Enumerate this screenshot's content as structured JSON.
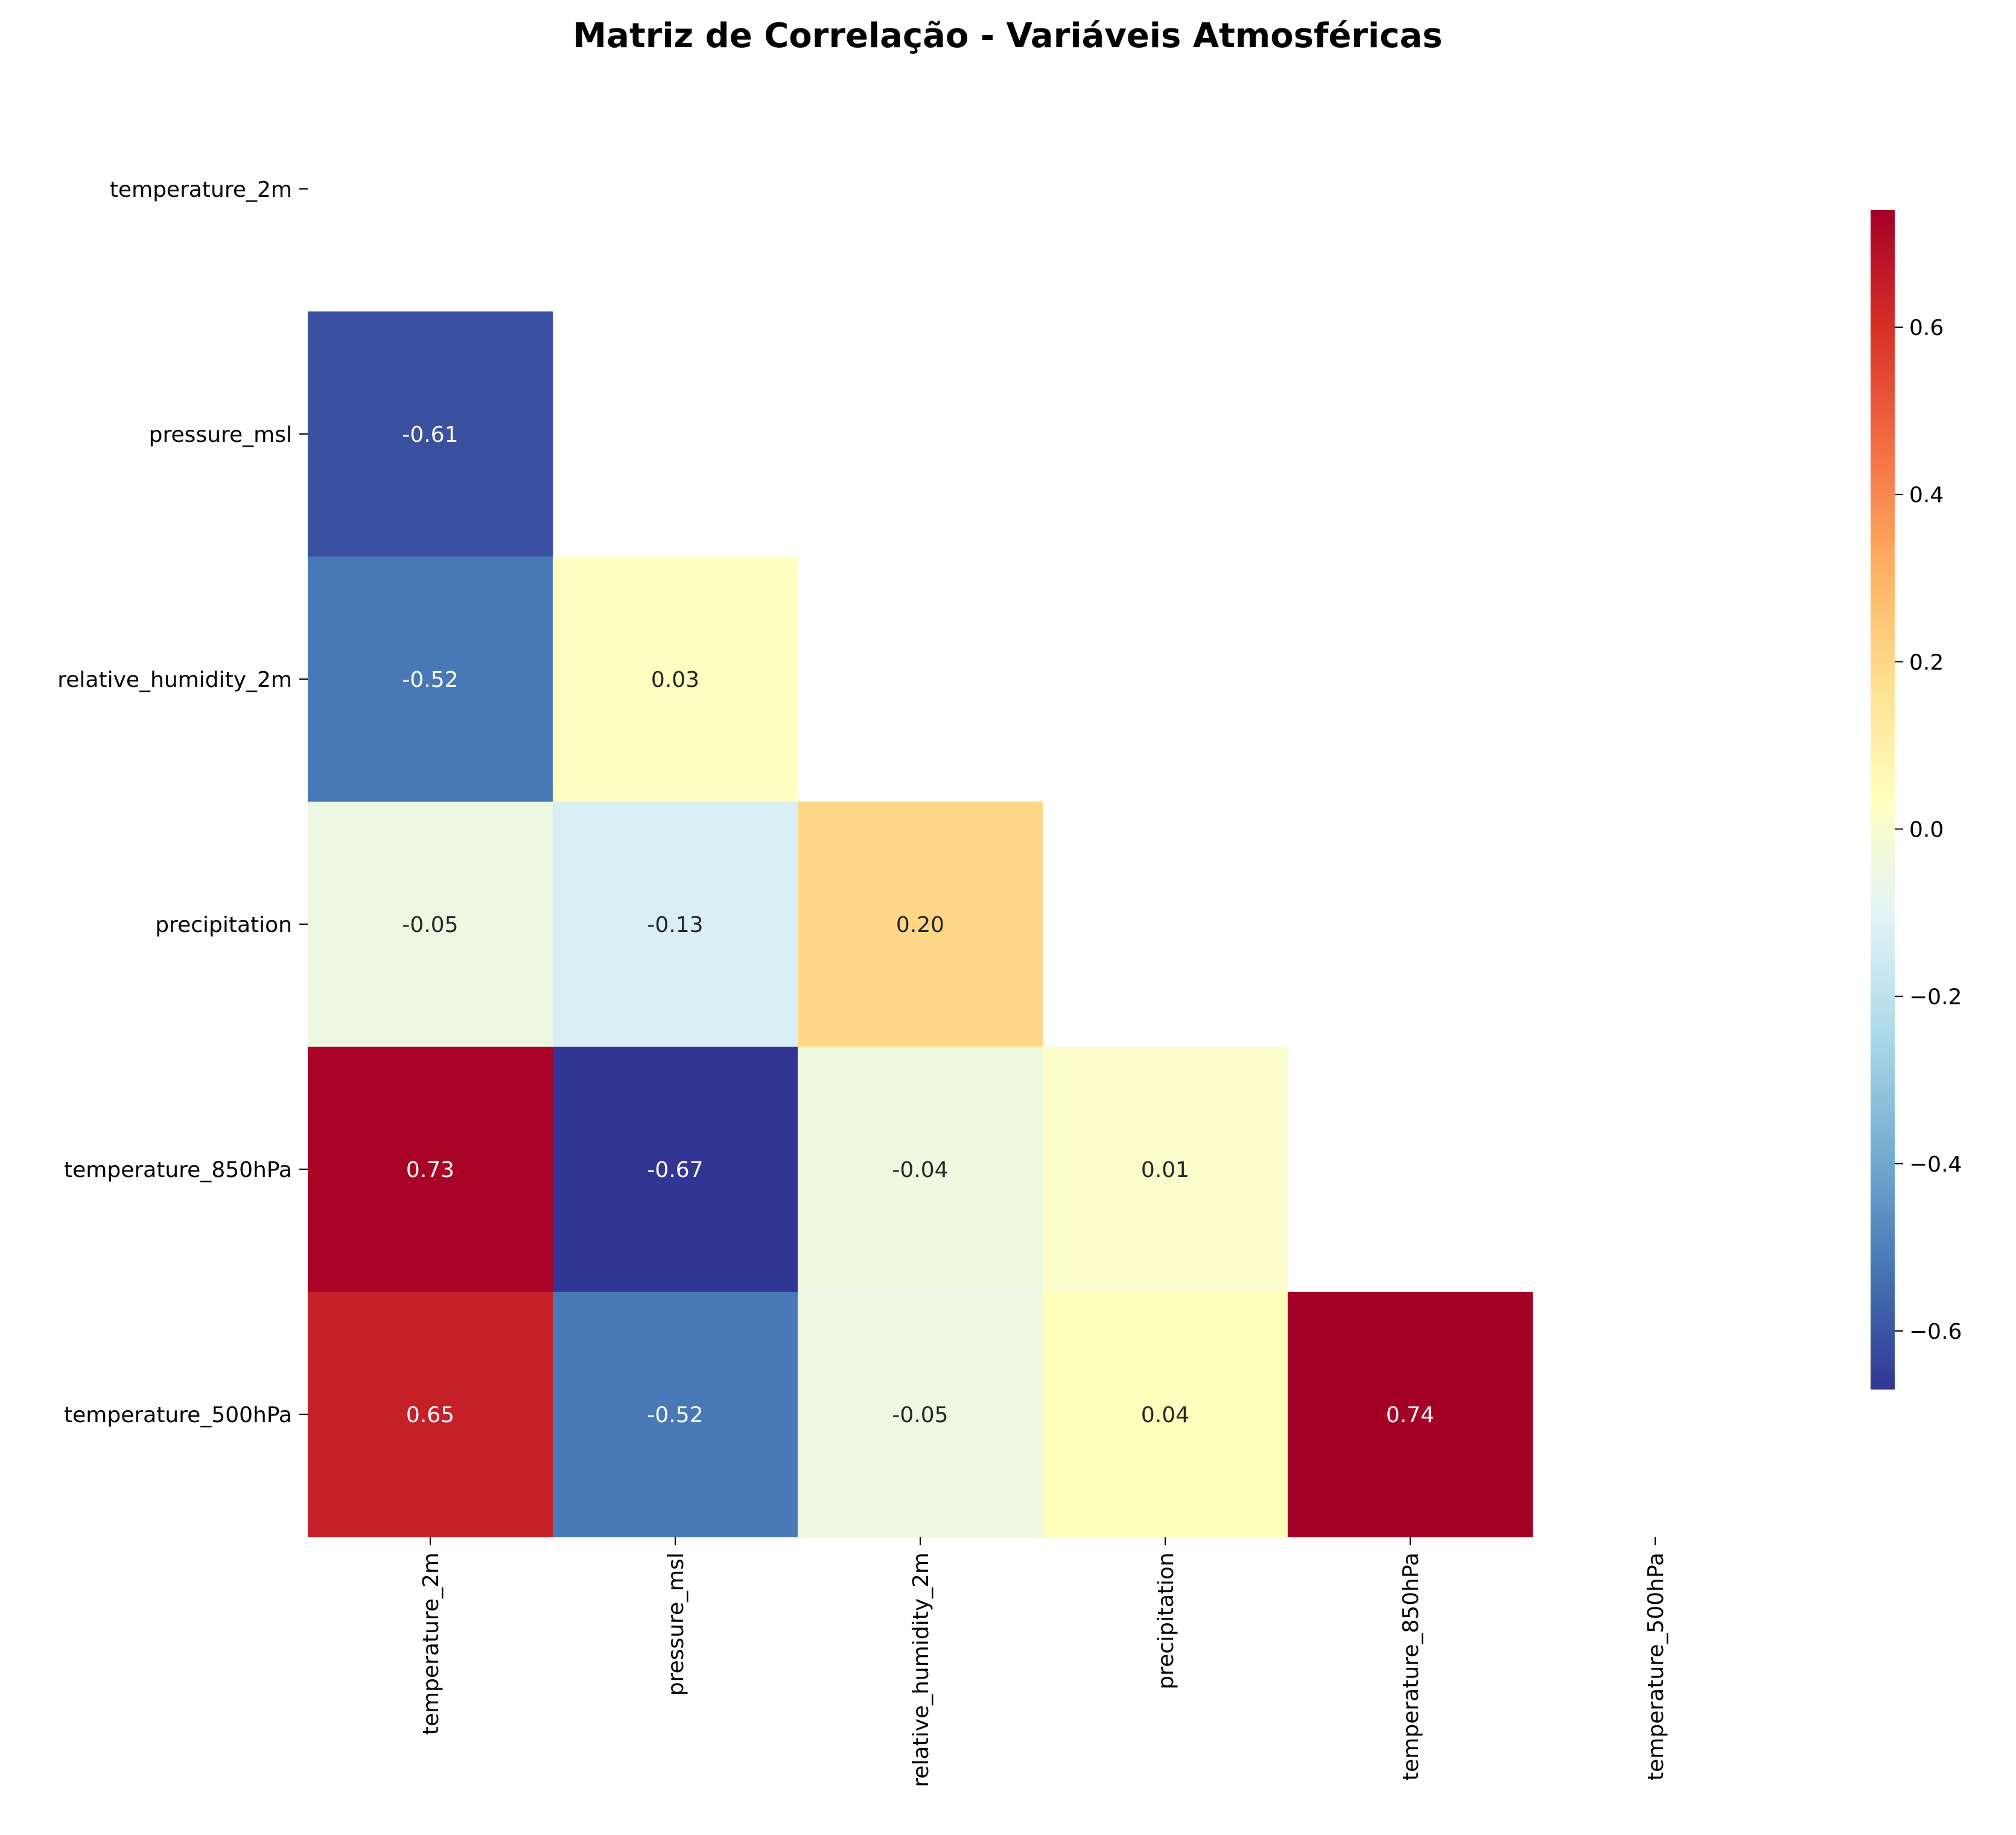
{
  "chart_data": {
    "type": "heatmap",
    "title": "Matriz de Correlação - Variáveis Atmosféricas",
    "xlabel": "",
    "ylabel": "",
    "variables": [
      "temperature_2m",
      "pressure_msl",
      "relative_humidity_2m",
      "precipitation",
      "temperature_850hPa",
      "temperature_500hPa"
    ],
    "mask": "upper-triangle-including-diagonal",
    "cells": [
      {
        "row": "pressure_msl",
        "col": "temperature_2m",
        "value": -0.61,
        "label": "-0.61"
      },
      {
        "row": "relative_humidity_2m",
        "col": "temperature_2m",
        "value": -0.52,
        "label": "-0.52"
      },
      {
        "row": "relative_humidity_2m",
        "col": "pressure_msl",
        "value": 0.03,
        "label": "0.03"
      },
      {
        "row": "precipitation",
        "col": "temperature_2m",
        "value": -0.05,
        "label": "-0.05"
      },
      {
        "row": "precipitation",
        "col": "pressure_msl",
        "value": -0.13,
        "label": "-0.13"
      },
      {
        "row": "precipitation",
        "col": "relative_humidity_2m",
        "value": 0.2,
        "label": "0.20"
      },
      {
        "row": "temperature_850hPa",
        "col": "temperature_2m",
        "value": 0.73,
        "label": "0.73"
      },
      {
        "row": "temperature_850hPa",
        "col": "pressure_msl",
        "value": -0.67,
        "label": "-0.67"
      },
      {
        "row": "temperature_850hPa",
        "col": "relative_humidity_2m",
        "value": -0.04,
        "label": "-0.04"
      },
      {
        "row": "temperature_850hPa",
        "col": "precipitation",
        "value": 0.01,
        "label": "0.01"
      },
      {
        "row": "temperature_500hPa",
        "col": "temperature_2m",
        "value": 0.65,
        "label": "0.65"
      },
      {
        "row": "temperature_500hPa",
        "col": "pressure_msl",
        "value": -0.52,
        "label": "-0.52"
      },
      {
        "row": "temperature_500hPa",
        "col": "relative_humidity_2m",
        "value": -0.05,
        "label": "-0.05"
      },
      {
        "row": "temperature_500hPa",
        "col": "precipitation",
        "value": 0.04,
        "label": "0.04"
      },
      {
        "row": "temperature_500hPa",
        "col": "temperature_850hPa",
        "value": 0.74,
        "label": "0.74"
      }
    ],
    "colormap": "RdYlBu_r",
    "vmin": -0.67,
    "vmax": 0.74,
    "colorbar": {
      "placement": "right",
      "ticks": [
        -0.6,
        -0.4,
        -0.2,
        0.0,
        0.2,
        0.4,
        0.6
      ],
      "tick_labels": [
        "−0.6",
        "−0.4",
        "−0.2",
        "0.0",
        "0.2",
        "0.4",
        "0.6"
      ]
    }
  }
}
